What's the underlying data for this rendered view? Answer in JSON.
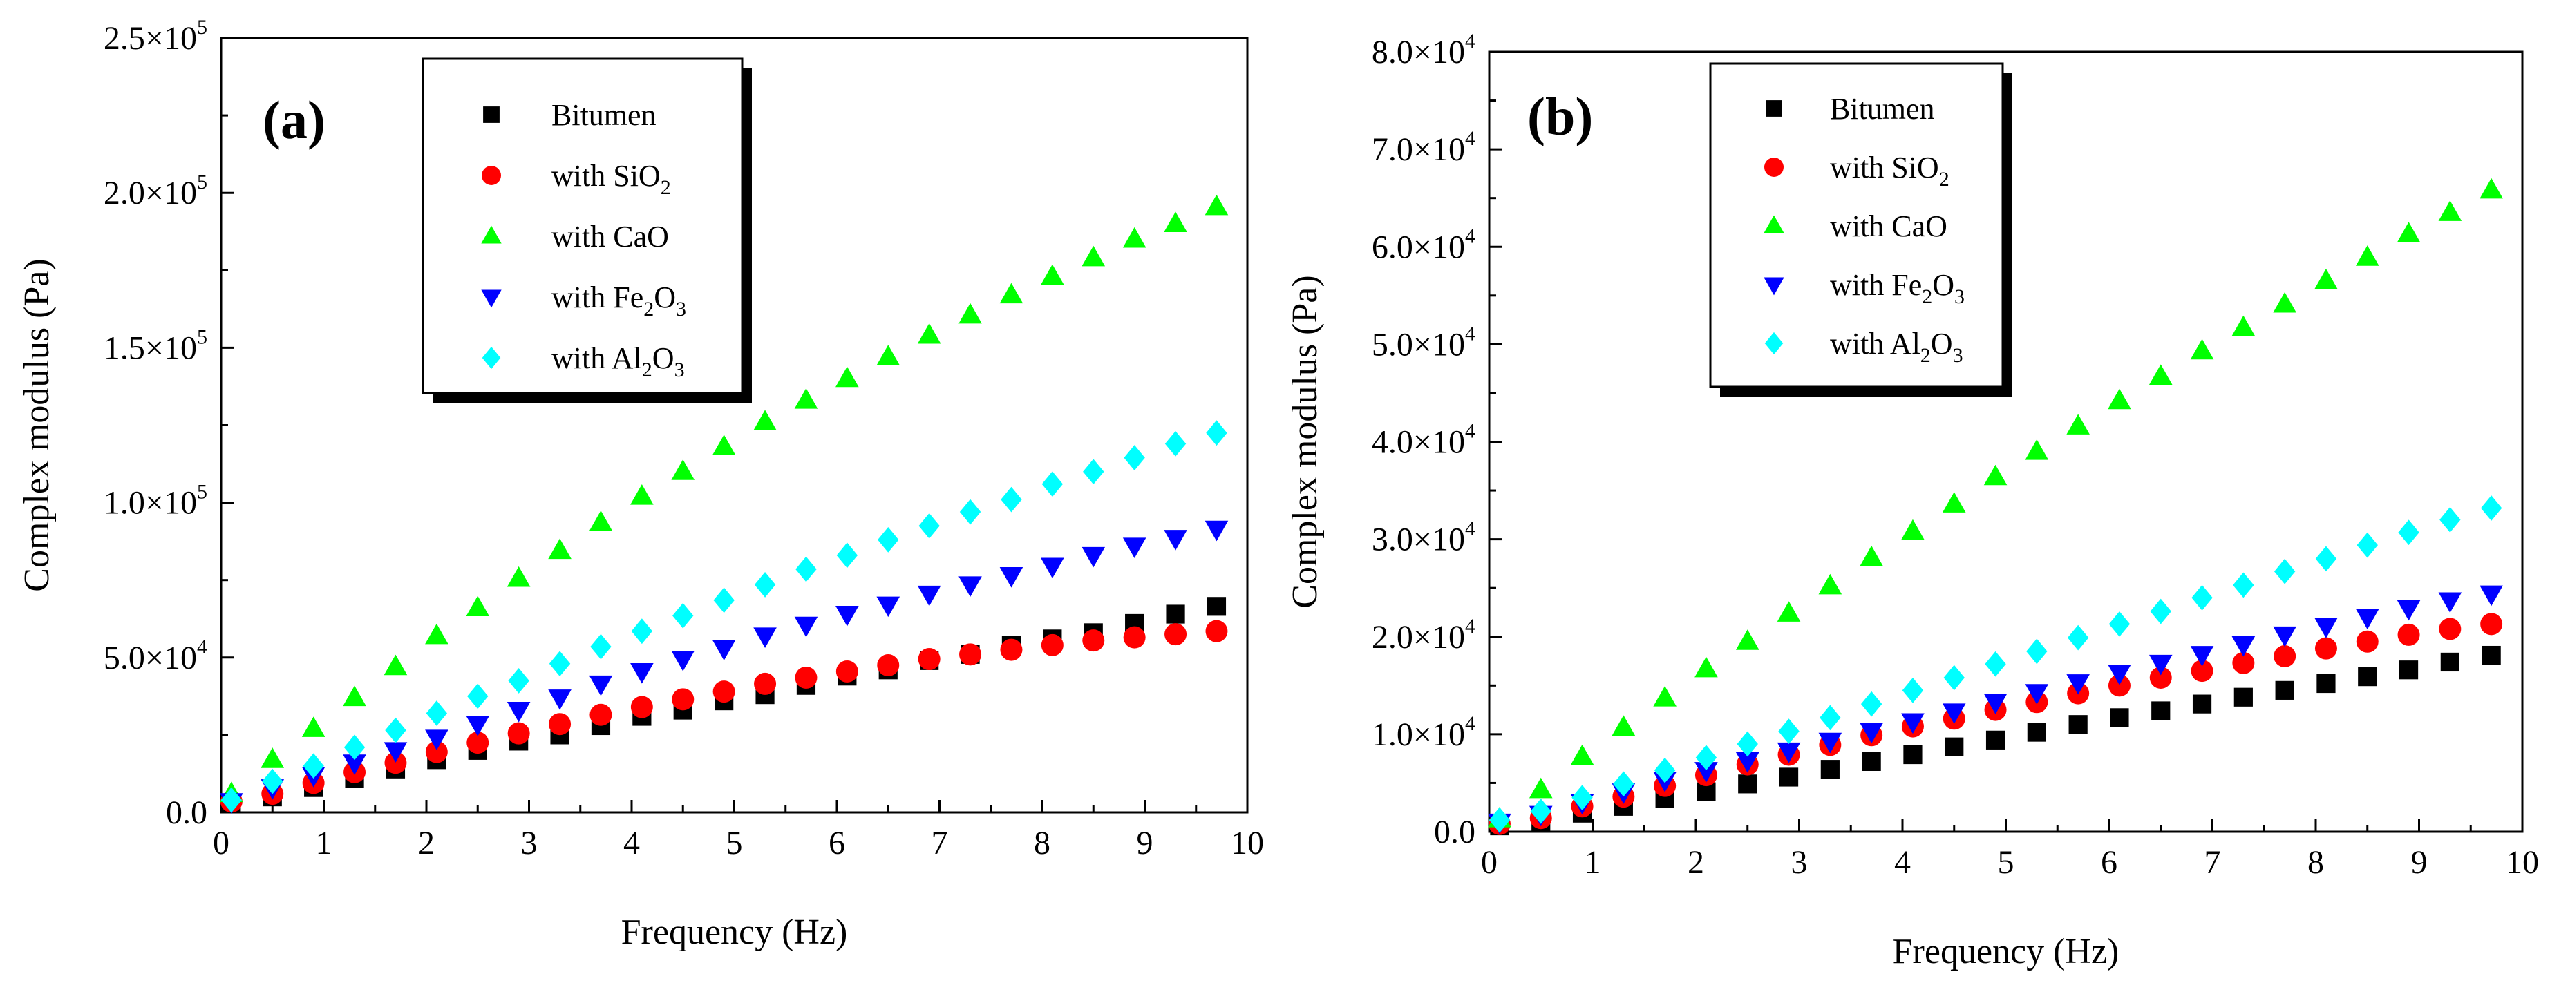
{
  "series_styles": [
    {
      "name": "Bitumen",
      "marker": "square",
      "color": "#000000"
    },
    {
      "name": "with SiO2",
      "marker": "circle",
      "color": "#ff0000"
    },
    {
      "name": "with CaO",
      "marker": "triangle-up",
      "color": "#00ff00"
    },
    {
      "name": "with Fe2O3",
      "marker": "triangle-down",
      "color": "#0000ff"
    },
    {
      "name": "with Al2O3",
      "marker": "diamond",
      "color": "#00ffff"
    }
  ],
  "chart_data": [
    {
      "type": "scatter",
      "panel_label": "(a)",
      "xlabel": "Frequency (Hz)",
      "ylabel": "Complex modulus (Pa)",
      "xlim": [
        0,
        10
      ],
      "ylim": [
        0,
        250000
      ],
      "xticks": [
        "0",
        "1",
        "2",
        "3",
        "4",
        "5",
        "6",
        "7",
        "8",
        "9",
        "10"
      ],
      "yticks": [
        {
          "mantissa": "0.0",
          "exponent": ""
        },
        {
          "mantissa": "5.0×10",
          "exponent": "4"
        },
        {
          "mantissa": "1.0×10",
          "exponent": "5"
        },
        {
          "mantissa": "1.5×10",
          "exponent": "5"
        },
        {
          "mantissa": "2.0×10",
          "exponent": "5"
        },
        {
          "mantissa": "2.5×10",
          "exponent": "5"
        }
      ],
      "legend": [
        {
          "name": "Bitumen",
          "text": "Bitumen",
          "sub": "",
          "suffix": ""
        },
        {
          "name": "with SiO2",
          "text": "with SiO",
          "sub": "2",
          "suffix": ""
        },
        {
          "name": "with CaO",
          "text": "with CaO",
          "sub": "",
          "suffix": ""
        },
        {
          "name": "with Fe2O3",
          "text": "with Fe",
          "sub": "2",
          "suffix": "O",
          "sub2": "3"
        },
        {
          "name": "with Al2O3",
          "text": "with Al",
          "sub": "2",
          "suffix": "O",
          "sub2": "3"
        }
      ],
      "x": [
        0.1,
        0.5,
        0.9,
        1.3,
        1.7,
        2.1,
        2.5,
        2.9,
        3.3,
        3.7,
        4.1,
        4.5,
        4.9,
        5.3,
        5.7,
        6.1,
        6.5,
        6.9,
        7.3,
        7.7,
        8.1,
        8.5,
        8.9,
        9.3,
        9.7
      ],
      "series": [
        {
          "name": "Bitumen",
          "values": [
            3000,
            5000,
            8000,
            11000,
            14000,
            17000,
            20000,
            23000,
            25000,
            28000,
            31000,
            33000,
            36000,
            38000,
            41000,
            44000,
            46000,
            49000,
            51000,
            54000,
            56000,
            58000,
            61000,
            64000,
            66500
          ]
        },
        {
          "name": "with SiO2",
          "values": [
            3500,
            6000,
            9500,
            13000,
            16000,
            19500,
            22500,
            25500,
            28500,
            31500,
            34000,
            36500,
            39000,
            41500,
            43500,
            45500,
            47500,
            49500,
            51000,
            52500,
            54000,
            55500,
            56500,
            57500,
            58500
          ]
        },
        {
          "name": "with CaO",
          "values": [
            6000,
            17000,
            27000,
            37000,
            47000,
            57000,
            66000,
            75500,
            84500,
            93500,
            102000,
            110000,
            118000,
            126000,
            133000,
            140000,
            147000,
            154000,
            160500,
            167000,
            173000,
            179000,
            185000,
            190000,
            195500
          ]
        },
        {
          "name": "with Fe2O3",
          "values": [
            3500,
            8000,
            12000,
            16000,
            20000,
            24000,
            28500,
            33000,
            37000,
            41500,
            45500,
            49500,
            53000,
            57000,
            60500,
            64000,
            67000,
            70500,
            73500,
            76500,
            79500,
            83000,
            86000,
            88500,
            91500
          ]
        },
        {
          "name": "with Al2O3",
          "values": [
            4000,
            10000,
            15000,
            21000,
            26500,
            32000,
            37500,
            42500,
            48000,
            53500,
            58500,
            63500,
            68500,
            73500,
            78500,
            83000,
            88000,
            92500,
            97000,
            101000,
            106000,
            110000,
            114500,
            119000,
            122500
          ]
        }
      ]
    },
    {
      "type": "scatter",
      "panel_label": "(b)",
      "xlabel": "Frequency (Hz)",
      "ylabel": "Complex modulus (Pa)",
      "xlim": [
        0,
        10
      ],
      "ylim": [
        0,
        80000
      ],
      "xticks": [
        "0",
        "1",
        "2",
        "3",
        "4",
        "5",
        "6",
        "7",
        "8",
        "9",
        "10"
      ],
      "yticks": [
        {
          "mantissa": "0.0",
          "exponent": ""
        },
        {
          "mantissa": "1.0×10",
          "exponent": "4"
        },
        {
          "mantissa": "2.0×10",
          "exponent": "4"
        },
        {
          "mantissa": "3.0×10",
          "exponent": "4"
        },
        {
          "mantissa": "4.0×10",
          "exponent": "4"
        },
        {
          "mantissa": "5.0×10",
          "exponent": "4"
        },
        {
          "mantissa": "6.0×10",
          "exponent": "4"
        },
        {
          "mantissa": "7.0×10",
          "exponent": "4"
        },
        {
          "mantissa": "8.0×10",
          "exponent": "4"
        }
      ],
      "legend": [
        {
          "name": "Bitumen",
          "text": "Bitumen",
          "sub": "",
          "suffix": ""
        },
        {
          "name": "with SiO2",
          "text": "with SiO",
          "sub": "2",
          "suffix": ""
        },
        {
          "name": "with CaO",
          "text": "with CaO",
          "sub": "",
          "suffix": ""
        },
        {
          "name": "with Fe2O3",
          "text": "with Fe",
          "sub": "2",
          "suffix": "O",
          "sub2": "3"
        },
        {
          "name": "with Al2O3",
          "text": "with Al",
          "sub": "2",
          "suffix": "O",
          "sub2": "3"
        }
      ],
      "x": [
        0.1,
        0.5,
        0.9,
        1.3,
        1.7,
        2.1,
        2.5,
        2.9,
        3.3,
        3.7,
        4.1,
        4.5,
        4.9,
        5.3,
        5.7,
        6.1,
        6.5,
        6.9,
        7.3,
        7.7,
        8.1,
        8.5,
        8.9,
        9.3,
        9.7
      ],
      "series": [
        {
          "name": "Bitumen",
          "values": [
            600,
            1000,
            1900,
            2600,
            3400,
            4100,
            4900,
            5600,
            6400,
            7200,
            7900,
            8700,
            9400,
            10200,
            11000,
            11700,
            12400,
            13100,
            13800,
            14500,
            15200,
            15900,
            16600,
            17400,
            18100
          ]
        },
        {
          "name": "with SiO2",
          "values": [
            800,
            1400,
            2600,
            3600,
            4700,
            5800,
            6900,
            7900,
            8900,
            9900,
            10800,
            11600,
            12500,
            13300,
            14200,
            15000,
            15800,
            16500,
            17300,
            18000,
            18800,
            19500,
            20200,
            20800,
            21300
          ]
        },
        {
          "name": "with CaO",
          "values": [
            1300,
            4300,
            7700,
            10700,
            13700,
            16700,
            19500,
            22400,
            25200,
            28100,
            30800,
            33600,
            36400,
            39000,
            41600,
            44200,
            46700,
            49300,
            51700,
            54100,
            56500,
            58900,
            61300,
            63500,
            65800
          ]
        },
        {
          "name": "with Fe2O3",
          "values": [
            1000,
            1800,
            3000,
            4100,
            5300,
            6300,
            7300,
            8300,
            9300,
            10300,
            11300,
            12300,
            13300,
            14300,
            15300,
            16300,
            17300,
            18200,
            19200,
            20200,
            21100,
            22000,
            22900,
            23700,
            24400
          ]
        },
        {
          "name": "with Al2O3",
          "values": [
            1200,
            2100,
            3500,
            4900,
            6300,
            7600,
            9000,
            10300,
            11700,
            13100,
            14500,
            15800,
            17200,
            18500,
            19900,
            21300,
            22600,
            24000,
            25300,
            26700,
            28000,
            29400,
            30700,
            32000,
            33200
          ]
        }
      ]
    }
  ]
}
